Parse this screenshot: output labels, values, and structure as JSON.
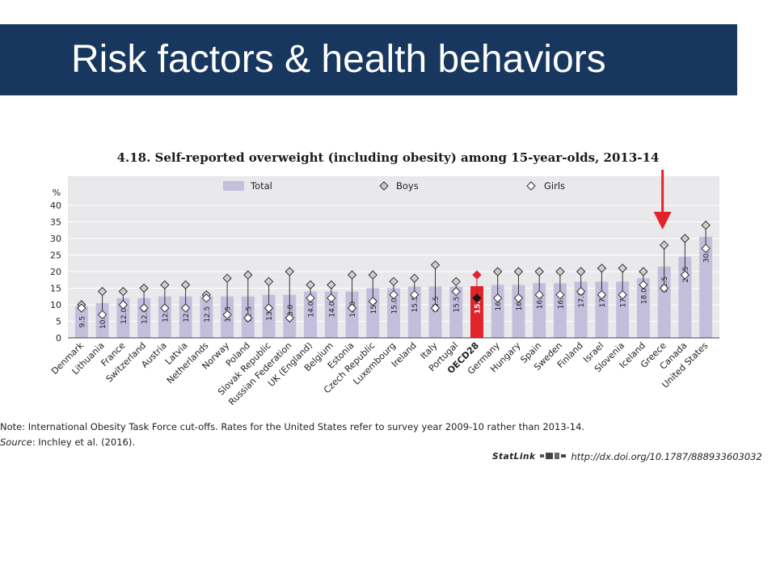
{
  "slide": {
    "title": "Risk factors & health behaviors"
  },
  "colors": {
    "title_bar": "#17375e",
    "total_bar": "#c4bedd",
    "oecd_bar": "#e2232a",
    "plot_bg": "#e9e9ec",
    "arrow": "#e2232a"
  },
  "chart_data": {
    "type": "bar",
    "title": "4.18. Self-reported overweight (including obesity) among 15-year-olds, 2013-14",
    "ylabel": "%",
    "ylim": [
      0,
      40
    ],
    "yticks": [
      "0",
      "5",
      "10",
      "15",
      "20",
      "25",
      "30",
      "35",
      "40"
    ],
    "legend": [
      "Total",
      "Boys",
      "Girls"
    ],
    "legend_placement": "top",
    "categories": [
      "Denmark",
      "Lithuania",
      "France",
      "Switzerland",
      "Austria",
      "Latvia",
      "Netherlands",
      "Norway",
      "Poland",
      "Slovak Republic",
      "Russian Federation",
      "UK (England)",
      "Belgium",
      "Estonia",
      "Czech Republic",
      "Luxembourg",
      "Ireland",
      "Italy",
      "Portugal",
      "OECD28",
      "Germany",
      "Hungary",
      "Spain",
      "Sweden",
      "Finland",
      "Israel",
      "Slovenia",
      "Iceland",
      "Greece",
      "Canada",
      "United States"
    ],
    "series": [
      {
        "name": "Total",
        "values": [
          9.5,
          10.5,
          12.0,
          12.0,
          12.5,
          12.5,
          12.5,
          12.5,
          12.5,
          13.0,
          13.0,
          14.0,
          14.0,
          14.0,
          15.0,
          15.0,
          15.5,
          15.5,
          15.5,
          15.6,
          16.0,
          16.0,
          16.5,
          16.5,
          17.0,
          17.0,
          17.0,
          18.0,
          21.5,
          24.5,
          30.5
        ]
      },
      {
        "name": "Boys",
        "values": [
          10,
          14,
          14,
          15,
          16,
          16,
          13,
          18,
          19,
          17,
          20,
          16,
          16,
          19,
          19,
          17,
          18,
          22,
          17,
          19,
          20,
          20,
          20,
          20,
          20,
          21,
          21,
          20,
          28,
          30,
          34
        ]
      },
      {
        "name": "Girls",
        "values": [
          9,
          7,
          10,
          9,
          9,
          9,
          12,
          7,
          6,
          9,
          6,
          12,
          12,
          9,
          11,
          13,
          13,
          9,
          14,
          12,
          12,
          12,
          13,
          13,
          14,
          13,
          13,
          16,
          15,
          19,
          27
        ]
      }
    ],
    "data_labels": [
      "9.5",
      "10.5",
      "12.0",
      "12.0",
      "12.5",
      "12.5",
      "12.5",
      "12.5",
      "12.5",
      "13.0",
      "13.0",
      "14.0",
      "14.0",
      "14.0",
      "15.0",
      "15.0",
      "15.5",
      "15.5",
      "15.5",
      "15.6",
      "16.0",
      "16.0",
      "16.5",
      "16.5",
      "17.0",
      "17.0",
      "17.0",
      "18.0",
      "21.5",
      "24.5",
      "30.5"
    ],
    "highlight_category": "OECD28",
    "annotation": "arrow pointing to Greece",
    "grid": true
  },
  "notes": {
    "note": "Note: International Obesity Task Force cut-offs. Rates for the United States refer to survey year 2009-10 rather than 2013-14.",
    "source_label": "Source",
    "source_text": ": Inchley et al. (2016).",
    "statlink_brand": "StatLink",
    "statlink_url": "http://dx.doi.org/10.1787/888933603032"
  }
}
